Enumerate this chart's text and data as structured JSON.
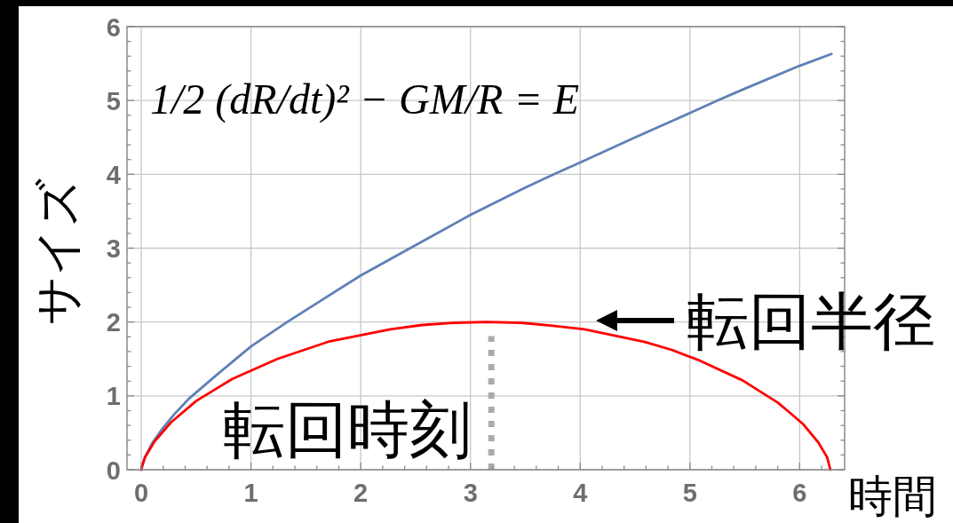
{
  "chart_data": {
    "type": "line",
    "xlabel": "時間",
    "ylabel": "サイズ",
    "xlim": [
      -0.13,
      6.41
    ],
    "ylim": [
      0,
      6
    ],
    "xticks": [
      0,
      {
        "value": 0.2,
        "label": null
      },
      {
        "value": 0.4,
        "label": null
      },
      {
        "value": 0.6,
        "label": null
      },
      {
        "value": 0.8,
        "label": null
      },
      1,
      {
        "value": 1.2,
        "label": null
      },
      {
        "value": 1.4,
        "label": null
      },
      {
        "value": 1.6,
        "label": null
      },
      {
        "value": 1.8,
        "label": null
      },
      2,
      {
        "value": 2.2,
        "label": null
      },
      {
        "value": 2.4,
        "label": null
      },
      {
        "value": 2.6,
        "label": null
      },
      {
        "value": 2.8,
        "label": null
      },
      3,
      {
        "value": 3.2,
        "label": null
      },
      {
        "value": 3.4,
        "label": null
      },
      {
        "value": 3.6,
        "label": null
      },
      {
        "value": 3.8,
        "label": null
      },
      4,
      {
        "value": 4.2,
        "label": null
      },
      {
        "value": 4.4,
        "label": null
      },
      {
        "value": 4.6,
        "label": null
      },
      {
        "value": 4.8,
        "label": null
      },
      5,
      {
        "value": 5.2,
        "label": null
      },
      {
        "value": 5.4,
        "label": null
      },
      {
        "value": 5.6,
        "label": null
      },
      {
        "value": 5.8,
        "label": null
      },
      6,
      {
        "value": 6.2,
        "label": null
      }
    ],
    "yticks": [
      0,
      {
        "value": 0.2,
        "label": null
      },
      {
        "value": 0.4,
        "label": null
      },
      {
        "value": 0.6,
        "label": null
      },
      {
        "value": 0.8,
        "label": null
      },
      1,
      {
        "value": 1.2,
        "label": null
      },
      {
        "value": 1.4,
        "label": null
      },
      {
        "value": 1.6,
        "label": null
      },
      {
        "value": 1.8,
        "label": null
      },
      2,
      {
        "value": 2.2,
        "label": null
      },
      {
        "value": 2.4,
        "label": null
      },
      {
        "value": 2.6,
        "label": null
      },
      {
        "value": 2.8,
        "label": null
      },
      3,
      {
        "value": 3.2,
        "label": null
      },
      {
        "value": 3.4,
        "label": null
      },
      {
        "value": 3.6,
        "label": null
      },
      {
        "value": 3.8,
        "label": null
      },
      4,
      {
        "value": 4.2,
        "label": null
      },
      {
        "value": 4.4,
        "label": null
      },
      {
        "value": 4.6,
        "label": null
      },
      {
        "value": 4.8,
        "label": null
      },
      5,
      {
        "value": 5.2,
        "label": null
      },
      {
        "value": 5.4,
        "label": null
      },
      {
        "value": 5.6,
        "label": null
      },
      {
        "value": 5.8,
        "label": null
      },
      6
    ],
    "grid": true,
    "series": [
      {
        "color": "#5e81b5",
        "x": [
          0,
          0.03,
          0.1,
          0.2,
          0.3,
          0.44,
          0.7,
          1,
          1.33,
          1.7,
          2,
          2.45,
          3,
          3.5,
          3.76,
          4,
          4.5,
          5,
          5.25,
          5.5,
          6,
          6.29
        ],
        "values": [
          0,
          0.16,
          0.36,
          0.57,
          0.75,
          0.97,
          1.3,
          1.67,
          2.0,
          2.35,
          2.63,
          3.0,
          3.45,
          3.82,
          4.0,
          4.16,
          4.5,
          4.83,
          5.0,
          5.16,
          5.47,
          5.63
        ]
      },
      {
        "color": "#ff0000",
        "x": [
          0,
          0.005,
          0.035,
          0.12,
          0.27,
          0.5,
          0.83,
          1.24,
          1.72,
          2.27,
          2.56,
          2.86,
          3.14,
          3.46,
          3.75,
          4.04,
          4.59,
          4.84,
          5.07,
          5.48,
          5.8,
          5.92,
          6.03,
          6.17,
          6.25,
          6.28
        ],
        "values": [
          0,
          0.04,
          0.17,
          0.38,
          0.64,
          0.93,
          1.23,
          1.5,
          1.74,
          1.9,
          1.96,
          1.99,
          2.0,
          1.99,
          1.95,
          1.9,
          1.73,
          1.62,
          1.49,
          1.21,
          0.91,
          0.76,
          0.62,
          0.37,
          0.17,
          0
        ]
      },
      {
        "color": "#aaaaaa",
        "line_style": "dotted",
        "x": [
          3.19,
          3.19
        ],
        "values": [
          0,
          1.81
        ]
      }
    ],
    "annotations": [
      "1/2 (dR/dt)² − GM/R = E",
      "転回半径",
      {
        "text": "転回時刻",
        "x": 3.19,
        "y": 0.55
      }
    ]
  }
}
